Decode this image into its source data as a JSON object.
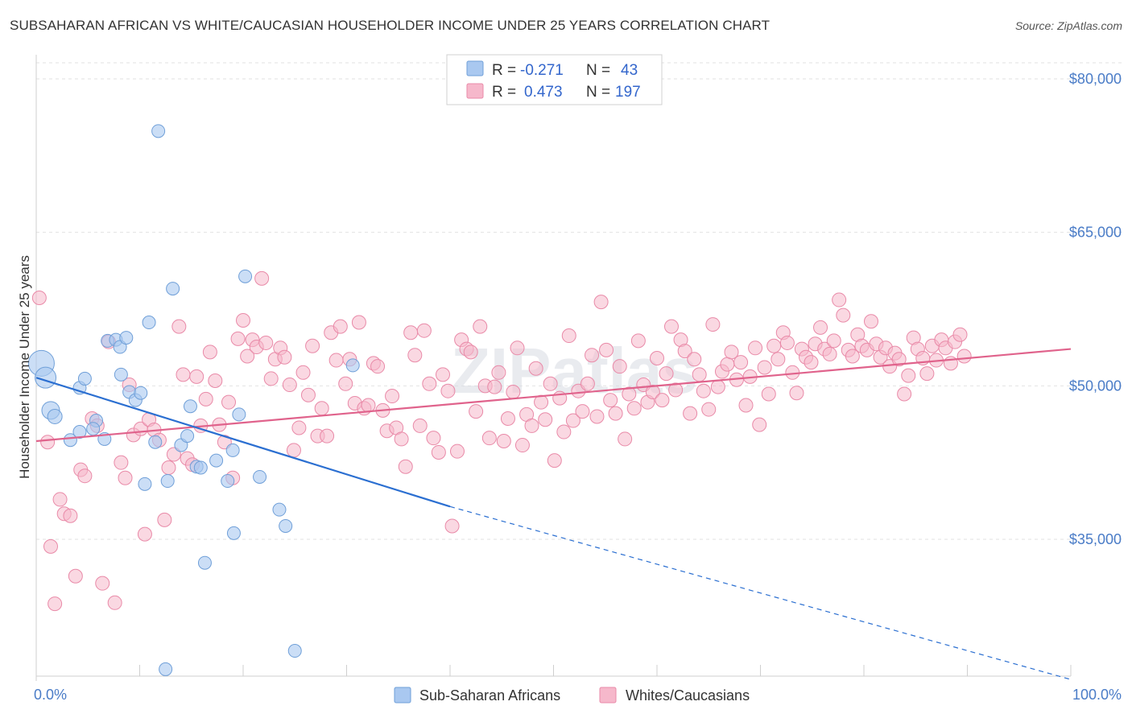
{
  "title": "SUBSAHARAN AFRICAN VS WHITE/CAUCASIAN HOUSEHOLDER INCOME UNDER 25 YEARS CORRELATION CHART",
  "source": "Source: ZipAtlas.com",
  "watermark": "ZIPatlas",
  "colors": {
    "blue_fill": "#a9c8f0",
    "blue_stroke": "#6f9fd8",
    "blue_line": "#2b6fd1",
    "pink_fill": "#f6b8cb",
    "pink_stroke": "#e98aa8",
    "pink_line": "#e0638c",
    "grid": "#e2e2e2",
    "tick_label": "#4a7cc7"
  },
  "legend": {
    "rows": [
      {
        "r_label": "R =",
        "r_value": "-0.271",
        "n_label": "N =",
        "n_value": "43"
      },
      {
        "r_label": "R =",
        "r_value": "0.473",
        "n_label": "N =",
        "n_value": "197"
      }
    ]
  },
  "bottom_legend": {
    "items": [
      "Sub-Saharan Africans",
      "Whites/Caucasians"
    ]
  },
  "chart_data": {
    "type": "scatter",
    "xlabel": "",
    "ylabel": "Householder Income Under 25 years",
    "xlim": [
      0,
      100
    ],
    "ylim": [
      21000,
      85000
    ],
    "x_tick_labels": [
      "0.0%",
      "100.0%"
    ],
    "y_ticks": [
      35000,
      50000,
      65000,
      80000
    ],
    "y_tick_labels": [
      "$35,000",
      "$50,000",
      "$65,000",
      "$80,000"
    ],
    "grid": true,
    "legend_placement": "top-center",
    "series": [
      {
        "name": "Sub-Saharan Africans",
        "trend": {
          "x0": 0,
          "y0": 50800,
          "x1": 40,
          "y1": 38200,
          "dash_to_x": 100,
          "dash_to_y": 21300
        },
        "points": [
          [
            0.5,
            52200,
            16
          ],
          [
            0.9,
            50800,
            13
          ],
          [
            1.4,
            47600,
            11
          ],
          [
            1.8,
            47000,
            9
          ],
          [
            3.3,
            44700,
            8
          ],
          [
            4.2,
            49800,
            8
          ],
          [
            4.7,
            50700,
            8
          ],
          [
            4.2,
            45500,
            8
          ],
          [
            5.8,
            46600,
            8
          ],
          [
            6.6,
            44800,
            8
          ],
          [
            6.9,
            54400,
            8
          ],
          [
            7.7,
            54500,
            8
          ],
          [
            8.2,
            51100,
            8
          ],
          [
            8.1,
            53800,
            8
          ],
          [
            8.7,
            54700,
            8
          ],
          [
            9.0,
            49400,
            8
          ],
          [
            9.6,
            48600,
            8
          ],
          [
            10.1,
            49300,
            8
          ],
          [
            10.5,
            40400,
            8
          ],
          [
            10.9,
            56200,
            8
          ],
          [
            11.5,
            44500,
            8
          ],
          [
            11.8,
            74900,
            8
          ],
          [
            12.7,
            40700,
            8
          ],
          [
            13.2,
            59500,
            8
          ],
          [
            14.0,
            44200,
            8
          ],
          [
            14.6,
            45100,
            8
          ],
          [
            14.9,
            48000,
            8
          ],
          [
            15.5,
            42100,
            8
          ],
          [
            15.9,
            42000,
            8
          ],
          [
            16.3,
            32700,
            8
          ],
          [
            17.4,
            42700,
            8
          ],
          [
            18.5,
            40700,
            8
          ],
          [
            19.0,
            43700,
            8
          ],
          [
            19.1,
            35600,
            8
          ],
          [
            19.6,
            47200,
            8
          ],
          [
            20.2,
            60700,
            8
          ],
          [
            21.6,
            41100,
            8
          ],
          [
            23.5,
            37900,
            8
          ],
          [
            24.1,
            36300,
            8
          ],
          [
            25.0,
            24100,
            8
          ],
          [
            30.6,
            52000,
            8
          ],
          [
            12.5,
            22300,
            8
          ],
          [
            5.5,
            45800,
            8
          ]
        ]
      },
      {
        "name": "Whites/Caucasians",
        "trend": {
          "x0": 0,
          "y0": 44600,
          "x1": 100,
          "y1": 53600
        },
        "points": [
          [
            0.3,
            58600
          ],
          [
            1.1,
            44500
          ],
          [
            1.4,
            34300
          ],
          [
            1.8,
            28700
          ],
          [
            2.3,
            38900
          ],
          [
            2.7,
            37500
          ],
          [
            3.3,
            37300
          ],
          [
            3.8,
            31400
          ],
          [
            4.3,
            41800
          ],
          [
            4.7,
            41200
          ],
          [
            5.4,
            46800
          ],
          [
            5.9,
            46100
          ],
          [
            6.4,
            30700
          ],
          [
            7.0,
            54300
          ],
          [
            7.6,
            28800
          ],
          [
            8.2,
            42500
          ],
          [
            8.6,
            41000
          ],
          [
            9.0,
            50100
          ],
          [
            9.4,
            45200
          ],
          [
            10.1,
            45800
          ],
          [
            10.5,
            35500
          ],
          [
            10.9,
            46700
          ],
          [
            11.4,
            45700
          ],
          [
            11.9,
            44700
          ],
          [
            12.4,
            36900
          ],
          [
            12.8,
            42000
          ],
          [
            13.3,
            43300
          ],
          [
            13.8,
            55800
          ],
          [
            14.2,
            51100
          ],
          [
            14.6,
            42900
          ],
          [
            15.1,
            42300
          ],
          [
            15.5,
            50900
          ],
          [
            15.9,
            46100
          ],
          [
            16.4,
            48700
          ],
          [
            16.8,
            53300
          ],
          [
            17.3,
            50500
          ],
          [
            17.7,
            46200
          ],
          [
            18.2,
            44500
          ],
          [
            18.6,
            48400
          ],
          [
            19.0,
            41000
          ],
          [
            19.5,
            54600
          ],
          [
            20.0,
            56400
          ],
          [
            20.4,
            52900
          ],
          [
            20.9,
            54500
          ],
          [
            21.3,
            53800
          ],
          [
            21.8,
            60500
          ],
          [
            22.2,
            54200
          ],
          [
            22.7,
            50700
          ],
          [
            23.1,
            52600
          ],
          [
            23.6,
            53700
          ],
          [
            24.0,
            52800
          ],
          [
            24.5,
            50100
          ],
          [
            24.9,
            43700
          ],
          [
            25.4,
            45900
          ],
          [
            25.8,
            51300
          ],
          [
            26.3,
            49100
          ],
          [
            26.7,
            53900
          ],
          [
            27.2,
            45100
          ],
          [
            27.6,
            47800
          ],
          [
            28.1,
            45100
          ],
          [
            28.5,
            55200
          ],
          [
            29.0,
            52500
          ],
          [
            29.4,
            55800
          ],
          [
            29.9,
            50200
          ],
          [
            30.3,
            52600
          ],
          [
            30.8,
            48300
          ],
          [
            31.2,
            56200
          ],
          [
            31.7,
            47800
          ],
          [
            32.1,
            48100
          ],
          [
            32.6,
            52200
          ],
          [
            33.0,
            51900
          ],
          [
            33.5,
            47600
          ],
          [
            33.9,
            45600
          ],
          [
            34.4,
            49000
          ],
          [
            34.8,
            45900
          ],
          [
            35.3,
            44800
          ],
          [
            35.7,
            42100
          ],
          [
            36.2,
            55200
          ],
          [
            36.6,
            53000
          ],
          [
            37.1,
            46100
          ],
          [
            37.5,
            55400
          ],
          [
            38.0,
            50200
          ],
          [
            38.4,
            44900
          ],
          [
            38.9,
            43500
          ],
          [
            39.3,
            51100
          ],
          [
            39.8,
            49500
          ],
          [
            40.2,
            36300
          ],
          [
            40.7,
            43600
          ],
          [
            41.1,
            54500
          ],
          [
            41.6,
            53600
          ],
          [
            42.0,
            53300
          ],
          [
            42.5,
            47500
          ],
          [
            42.9,
            55800
          ],
          [
            43.4,
            50000
          ],
          [
            43.8,
            44900
          ],
          [
            44.3,
            49900
          ],
          [
            44.7,
            51300
          ],
          [
            45.2,
            44600
          ],
          [
            45.6,
            46800
          ],
          [
            46.1,
            49400
          ],
          [
            46.5,
            53700
          ],
          [
            47.0,
            44200
          ],
          [
            47.4,
            47200
          ],
          [
            47.9,
            46100
          ],
          [
            48.3,
            51700
          ],
          [
            48.8,
            48400
          ],
          [
            49.2,
            46700
          ],
          [
            49.7,
            50200
          ],
          [
            50.1,
            42700
          ],
          [
            50.6,
            48800
          ],
          [
            51.0,
            45500
          ],
          [
            51.5,
            54900
          ],
          [
            51.9,
            46600
          ],
          [
            52.4,
            49500
          ],
          [
            52.8,
            47500
          ],
          [
            53.3,
            50200
          ],
          [
            53.7,
            53000
          ],
          [
            54.2,
            47000
          ],
          [
            54.6,
            58200
          ],
          [
            55.1,
            53500
          ],
          [
            55.5,
            48600
          ],
          [
            56.0,
            47300
          ],
          [
            56.4,
            51900
          ],
          [
            56.9,
            44800
          ],
          [
            57.3,
            49200
          ],
          [
            57.8,
            47800
          ],
          [
            58.2,
            54400
          ],
          [
            58.7,
            50100
          ],
          [
            59.1,
            48400
          ],
          [
            59.6,
            49400
          ],
          [
            60.0,
            52700
          ],
          [
            60.5,
            48600
          ],
          [
            60.9,
            51200
          ],
          [
            61.4,
            55800
          ],
          [
            61.8,
            49600
          ],
          [
            62.3,
            54500
          ],
          [
            62.7,
            53400
          ],
          [
            63.2,
            47300
          ],
          [
            63.6,
            52600
          ],
          [
            64.1,
            51100
          ],
          [
            64.5,
            49500
          ],
          [
            65.0,
            47700
          ],
          [
            65.4,
            56000
          ],
          [
            65.9,
            49900
          ],
          [
            66.3,
            51400
          ],
          [
            66.8,
            52100
          ],
          [
            67.2,
            53300
          ],
          [
            67.7,
            50600
          ],
          [
            68.1,
            52300
          ],
          [
            68.6,
            48100
          ],
          [
            69.0,
            50900
          ],
          [
            69.5,
            53700
          ],
          [
            69.9,
            46200
          ],
          [
            70.4,
            51800
          ],
          [
            70.8,
            49200
          ],
          [
            71.3,
            53900
          ],
          [
            71.7,
            52600
          ],
          [
            72.2,
            55200
          ],
          [
            72.6,
            54200
          ],
          [
            73.1,
            51300
          ],
          [
            73.5,
            49300
          ],
          [
            74.0,
            53600
          ],
          [
            74.4,
            52800
          ],
          [
            74.9,
            52300
          ],
          [
            75.3,
            54100
          ],
          [
            75.8,
            55700
          ],
          [
            76.2,
            53600
          ],
          [
            76.7,
            53100
          ],
          [
            77.1,
            54400
          ],
          [
            77.6,
            58400
          ],
          [
            78.0,
            56900
          ],
          [
            78.5,
            53500
          ],
          [
            78.9,
            52900
          ],
          [
            79.4,
            55000
          ],
          [
            79.8,
            53900
          ],
          [
            80.3,
            53500
          ],
          [
            80.7,
            56300
          ],
          [
            81.2,
            54100
          ],
          [
            81.6,
            52800
          ],
          [
            82.1,
            53700
          ],
          [
            82.5,
            51900
          ],
          [
            83.0,
            53200
          ],
          [
            83.4,
            52600
          ],
          [
            83.9,
            49200
          ],
          [
            84.3,
            51000
          ],
          [
            84.8,
            54700
          ],
          [
            85.2,
            53600
          ],
          [
            85.7,
            52700
          ],
          [
            86.1,
            51200
          ],
          [
            86.6,
            53900
          ],
          [
            87.0,
            52500
          ],
          [
            87.5,
            54500
          ],
          [
            87.9,
            53700
          ],
          [
            88.4,
            52200
          ],
          [
            88.8,
            54300
          ],
          [
            89.3,
            55000
          ],
          [
            89.7,
            52900
          ]
        ]
      }
    ]
  }
}
